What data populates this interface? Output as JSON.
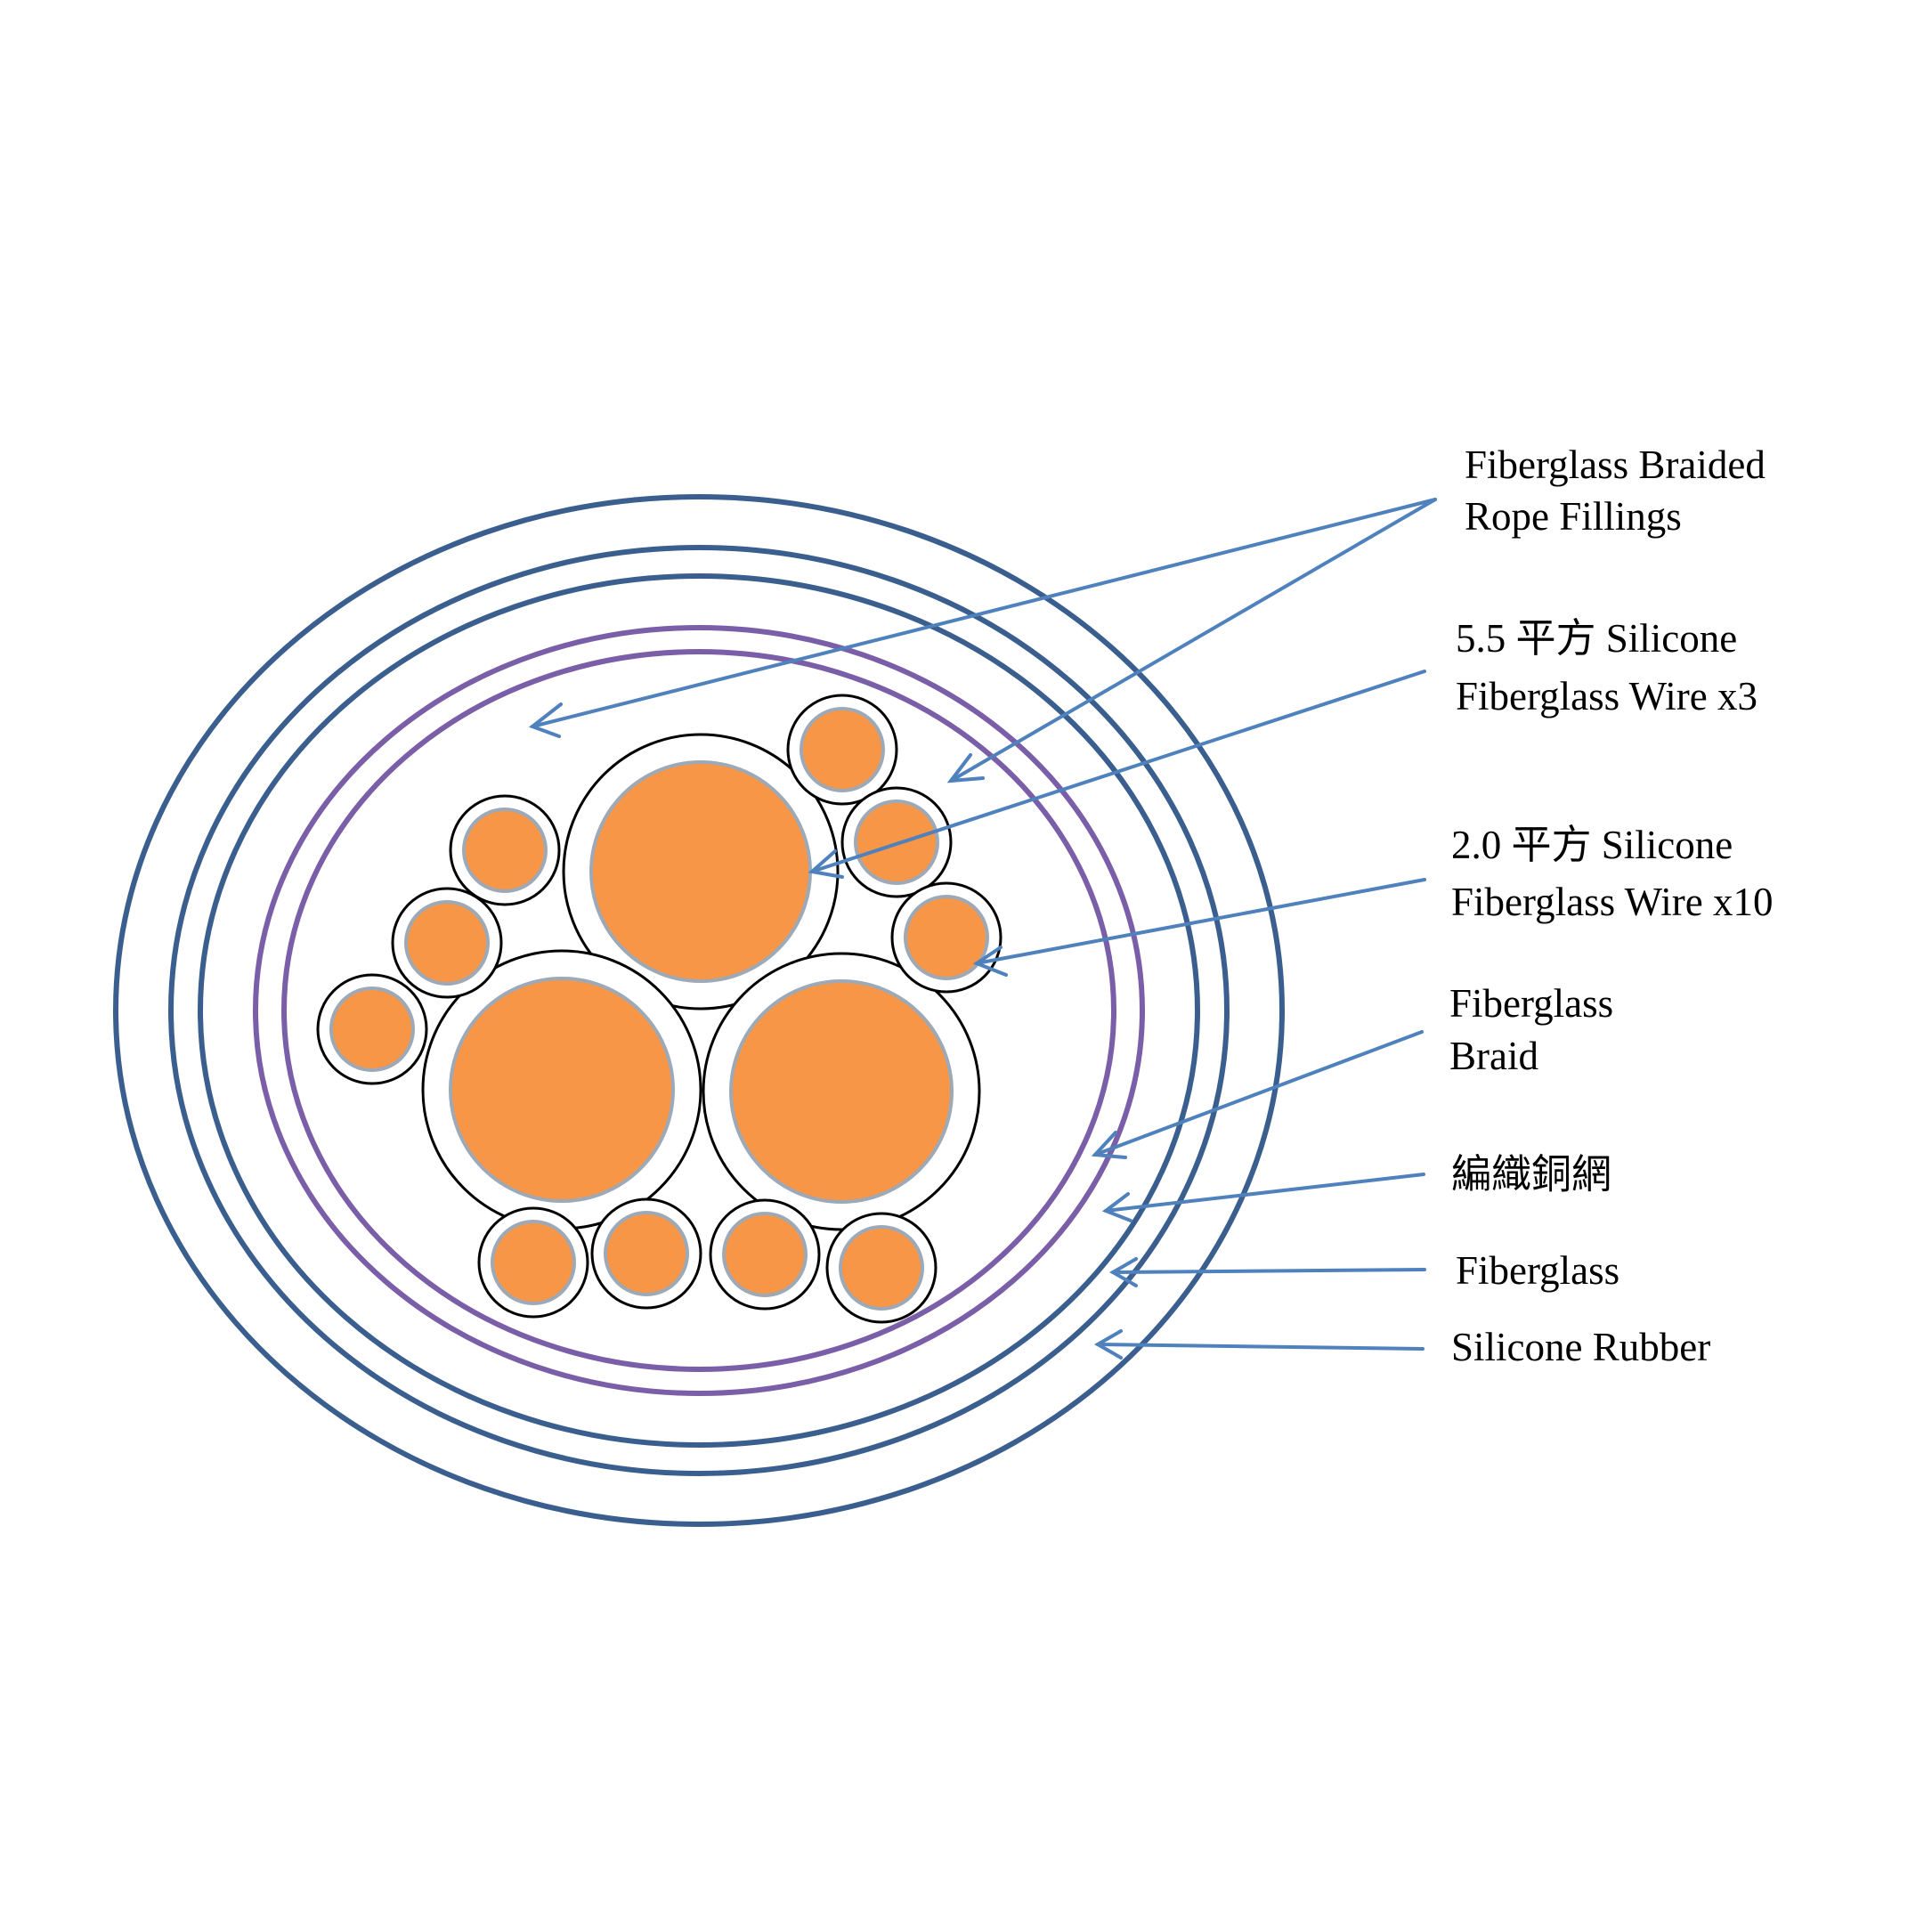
{
  "labels": {
    "rope_fillings": [
      "Fiberglass Braided",
      "Rope Fillings"
    ],
    "wire_55": [
      "5.5 平方  Silicone",
      "Fiberglass Wire x3"
    ],
    "wire_20": [
      "2.0 平方  Silicone",
      "Fiberglass Wire x10"
    ],
    "fiberglass_braid": [
      "Fiberglass",
      "Braid"
    ],
    "copper_braid": "編織銅網",
    "fiberglass": "Fiberglass",
    "silicone_rubber": "Silicone Rubber"
  },
  "colors": {
    "outer_ring": "#3a5f8e",
    "inner_ring": "#7b5ea8",
    "conductor": "#f79646",
    "conductor_edge": "#9da9b7",
    "leader": "#4f81bd",
    "insulation_edge": "#000000"
  }
}
